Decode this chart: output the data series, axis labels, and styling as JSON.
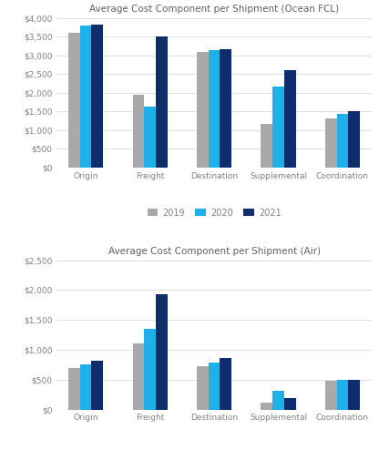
{
  "ocean_title": "Average Cost Component per Shipment (Ocean FCL)",
  "air_title": "Average Cost Component per Shipment (Air)",
  "categories": [
    "Origin",
    "Freight",
    "Destination",
    "Supplemental",
    "Coordination"
  ],
  "years": [
    "2019",
    "2020",
    "2021"
  ],
  "colors": [
    "#a9a9a9",
    "#1eb0e8",
    "#0d2d6b"
  ],
  "ocean_data": {
    "2019": [
      3600,
      1950,
      3100,
      1175,
      1300
    ],
    "2020": [
      3800,
      1625,
      3150,
      2175,
      1425
    ],
    "2021": [
      3825,
      3500,
      3175,
      2600,
      1500
    ]
  },
  "air_data": {
    "2019": [
      700,
      1100,
      725,
      110,
      475
    ],
    "2020": [
      760,
      1350,
      790,
      320,
      500
    ],
    "2021": [
      820,
      1925,
      860,
      185,
      500
    ]
  },
  "ocean_ylim": [
    0,
    4000
  ],
  "ocean_yticks": [
    0,
    500,
    1000,
    1500,
    2000,
    2500,
    3000,
    3500,
    4000
  ],
  "air_ylim": [
    0,
    2500
  ],
  "air_yticks": [
    0,
    500,
    1000,
    1500,
    2000,
    2500
  ],
  "background_color": "#ffffff",
  "grid_color": "#d8d8d8",
  "text_color": "#606060",
  "tick_label_color": "#808080"
}
